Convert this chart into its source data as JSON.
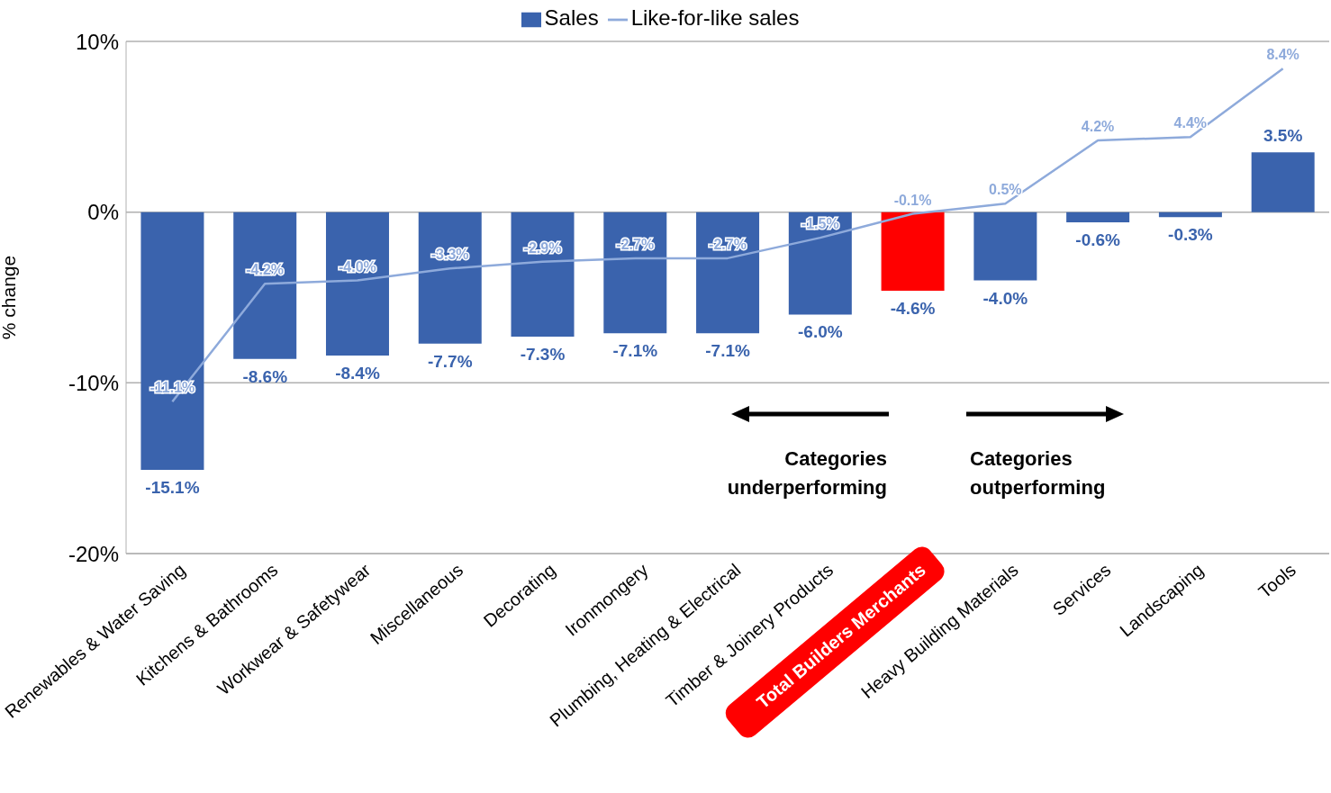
{
  "chart_data": {
    "type": "bar",
    "categories": [
      "Renewables & Water Saving",
      "Kitchens & Bathrooms",
      "Workwear & Safetywear",
      "Miscellaneous",
      "Decorating",
      "Ironmongery",
      "Plumbing, Heating & Electrical",
      "Timber & Joinery Products",
      "Total Builders Merchants",
      "Heavy Building Materials",
      "Services",
      "Landscaping",
      "Tools"
    ],
    "series": [
      {
        "name": "Sales",
        "color": "#3a63ad",
        "colors": [
          "#3a63ad",
          "#3a63ad",
          "#3a63ad",
          "#3a63ad",
          "#3a63ad",
          "#3a63ad",
          "#3a63ad",
          "#3a63ad",
          "#ff0000",
          "#3a63ad",
          "#3a63ad",
          "#3a63ad",
          "#3a63ad"
        ],
        "values": [
          -15.1,
          -8.6,
          -8.4,
          -7.7,
          -7.3,
          -7.1,
          -7.1,
          -6.0,
          -4.6,
          -4.0,
          -0.6,
          -0.3,
          3.5
        ],
        "value_labels": [
          "-15.1%",
          "-8.6%",
          "-8.4%",
          "-7.7%",
          "-7.3%",
          "-7.1%",
          "-7.1%",
          "-6.0%",
          "-4.6%",
          "-4.0%",
          "-0.6%",
          "-0.3%",
          "3.5%"
        ]
      },
      {
        "name": "Like-for-like sales",
        "type": "line",
        "color": "#8eaadb",
        "values": [
          -11.1,
          -4.2,
          -4.0,
          -3.3,
          -2.9,
          -2.7,
          -2.7,
          -1.5,
          -0.1,
          0.5,
          4.2,
          4.4,
          8.4
        ],
        "value_labels": [
          "-11.1%",
          "-4.2%",
          "-4.0%",
          "-3.3%",
          "-2.9%",
          "-2.7%",
          "-2.7%",
          "-1.5%",
          "-0.1%",
          "0.5%",
          "4.2%",
          "4.4%",
          "8.4%"
        ]
      }
    ],
    "ylabel": "% change",
    "ylim": [
      -20,
      10
    ],
    "yticks": [
      {
        "value": -20,
        "label": "-20%"
      },
      {
        "value": -10,
        "label": "-10%"
      },
      {
        "value": 0,
        "label": "0%"
      },
      {
        "value": 10,
        "label": "10%"
      }
    ],
    "grid": "y",
    "legend": "top",
    "marker": "none",
    "annotations": [
      "Categories underperforming",
      "Categories outperforming"
    ]
  }
}
